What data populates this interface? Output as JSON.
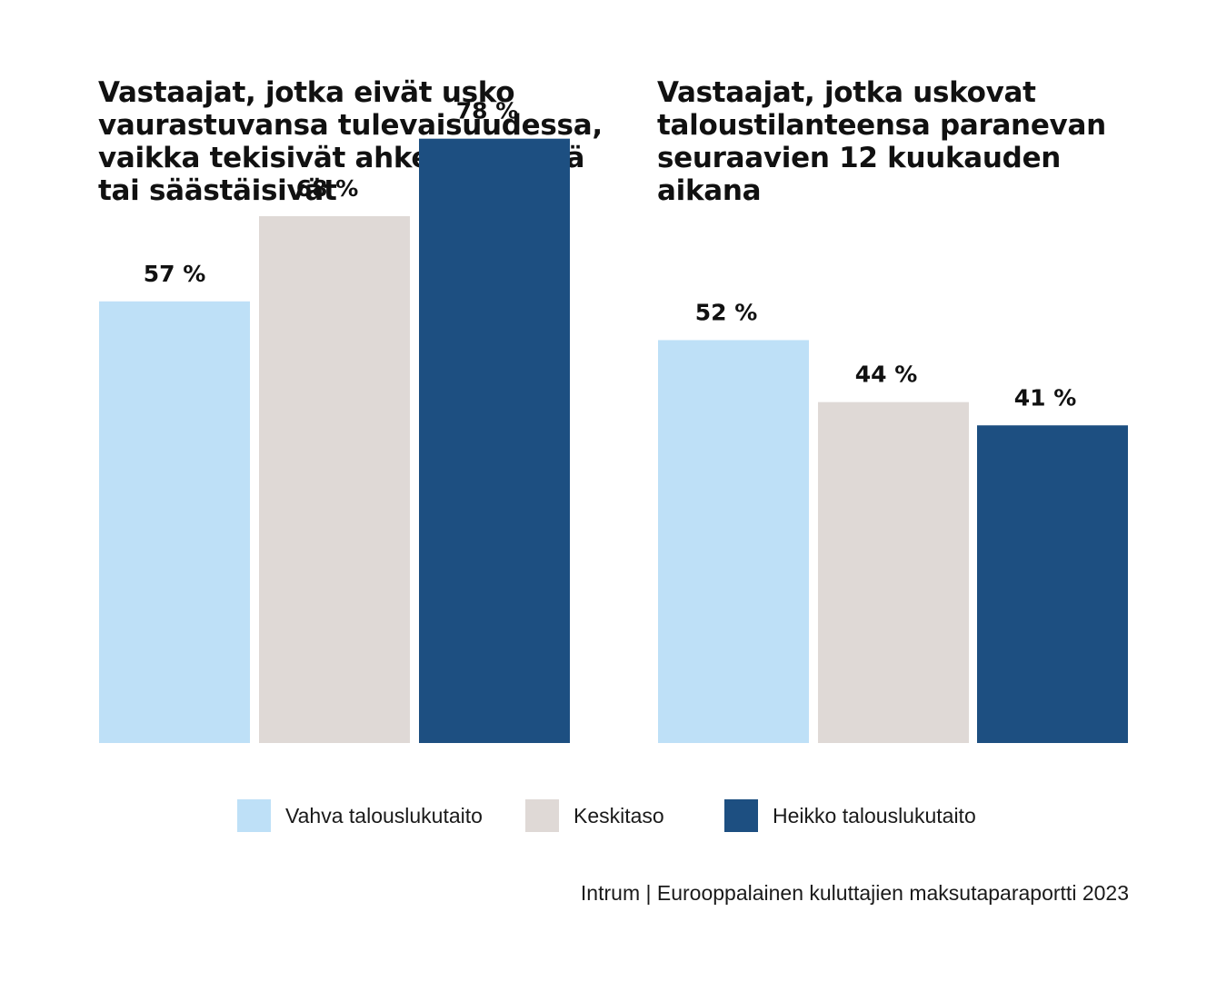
{
  "colors": {
    "strong": "#bee0f7",
    "average": "#dfd9d6",
    "weak": "#1d4f81"
  },
  "legend": [
    {
      "label": "Vahva talouslukutaito",
      "color": "#bee0f7"
    },
    {
      "label": "Keskitaso",
      "color": "#dfd9d6"
    },
    {
      "label": "Heikko talouslukutaito",
      "color": "#1d4f81"
    }
  ],
  "source": "Intrum | Eurooppalainen kuluttajien maksutaparaportti 2023",
  "chart_data": [
    {
      "type": "bar",
      "title": "Vastaajat, jotka eivät usko vaurastuvansa tulevaisuudessa, vaikka tekisivät ahkerasti töitä tai säästäisivät",
      "categories": [
        "Vahva talouslukutaito",
        "Keskitaso",
        "Heikko talouslukutaito"
      ],
      "values": [
        57,
        68,
        78
      ],
      "value_labels": [
        "57 %",
        "68 %",
        "78 %"
      ],
      "xlabel": "",
      "ylabel": "",
      "ylim": [
        0,
        100
      ],
      "grid": false
    },
    {
      "type": "bar",
      "title": "Vastaajat, jotka uskovat taloustilanteensa paranevan seuraavien 12 kuukauden aikana",
      "categories": [
        "Vahva talouslukutaito",
        "Keskitaso",
        "Heikko talouslukutaito"
      ],
      "values": [
        52,
        44,
        41
      ],
      "value_labels": [
        "52 %",
        "44 %",
        "41 %"
      ],
      "xlabel": "",
      "ylabel": "",
      "ylim": [
        0,
        100
      ],
      "grid": false
    }
  ]
}
